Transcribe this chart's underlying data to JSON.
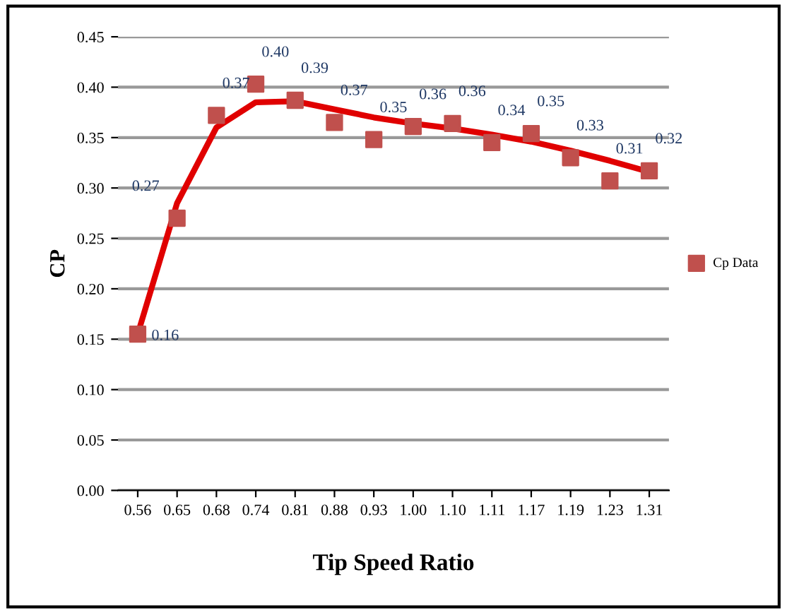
{
  "chart_data": {
    "type": "scatter",
    "xlabel": "Tip Speed Ratio",
    "ylabel": "CP",
    "categories": [
      "0.56",
      "0.65",
      "0.68",
      "0.74",
      "0.81",
      "0.88",
      "0.93",
      "1.00",
      "1.10",
      "1.11",
      "1.17",
      "1.19",
      "1.23",
      "1.31"
    ],
    "series": [
      {
        "name": "Cp Data",
        "color": "#c0504d",
        "marker": "square",
        "values": [
          0.155,
          0.27,
          0.372,
          0.403,
          0.387,
          0.365,
          0.348,
          0.361,
          0.364,
          0.345,
          0.354,
          0.33,
          0.307,
          0.317
        ],
        "value_labels": [
          "0.16",
          "0.27",
          "0.37",
          "0.40",
          "0.39",
          "0.37",
          "0.35",
          "0.36",
          "0.36",
          "0.34",
          "0.35",
          "0.33",
          "0.31",
          "0.32"
        ]
      },
      {
        "type": "line",
        "color": "#e00000",
        "line_style": "solid",
        "values": [
          0.155,
          0.285,
          0.36,
          0.385,
          0.386,
          0.378,
          0.37,
          0.364,
          0.359,
          0.353,
          0.346,
          0.337,
          0.327,
          0.316
        ]
      }
    ],
    "ylim": [
      0.0,
      0.45
    ],
    "yticks": [
      {
        "value": 0.0,
        "label": "0.00"
      },
      0.05,
      {
        "value": 0.1,
        "label": "0.10"
      },
      0.15,
      {
        "value": 0.2,
        "label": "0.20"
      },
      0.25,
      {
        "value": 0.3,
        "label": "0.30"
      },
      0.35,
      {
        "value": 0.4,
        "label": "0.40"
      },
      0.45
    ],
    "grid": "y",
    "legend": "right"
  }
}
